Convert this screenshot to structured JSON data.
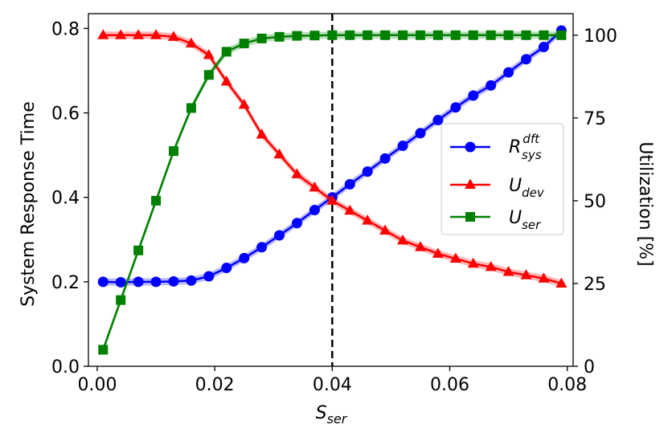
{
  "chart_data": {
    "type": "line",
    "title": "",
    "xlabel": {
      "base": "S",
      "sub": "ser"
    },
    "ylabel_left": "System Response Time",
    "ylabel_right": "Utilization [%]",
    "xlim": [
      -0.0015,
      0.081
    ],
    "ylim_left": [
      0.0,
      0.835
    ],
    "ylim_right": [
      0,
      106.5
    ],
    "xticks": [
      0.0,
      0.02,
      0.04,
      0.06,
      0.08
    ],
    "xtick_labels": [
      "0.00",
      "0.02",
      "0.04",
      "0.06",
      "0.08"
    ],
    "yticks_left": [
      0.0,
      0.2,
      0.4,
      0.6,
      0.8
    ],
    "ytick_labels_left": [
      "0.0",
      "0.2",
      "0.4",
      "0.6",
      "0.8"
    ],
    "yticks_right": [
      0,
      25,
      50,
      75,
      100
    ],
    "ytick_labels_right": [
      "0",
      "25",
      "50",
      "75",
      "100"
    ],
    "vline": {
      "x": 0.04,
      "style": "dashed",
      "color": "#000000"
    },
    "legend": {
      "placement": "center-right"
    },
    "x": [
      0.001,
      0.004,
      0.007,
      0.01,
      0.013,
      0.016,
      0.019,
      0.022,
      0.025,
      0.028,
      0.031,
      0.034,
      0.037,
      0.04,
      0.043,
      0.046,
      0.049,
      0.052,
      0.055,
      0.058,
      0.061,
      0.064,
      0.067,
      0.07,
      0.073,
      0.076,
      0.079
    ],
    "series": [
      {
        "name": "R_sys^dft",
        "label_base": "R",
        "label_sub": "sys",
        "label_sup": "dft",
        "axis": "left",
        "color": "#0000ff",
        "marker": "circle",
        "values": [
          0.2,
          0.199,
          0.2,
          0.2,
          0.201,
          0.203,
          0.213,
          0.233,
          0.256,
          0.282,
          0.31,
          0.339,
          0.37,
          0.4,
          0.431,
          0.461,
          0.492,
          0.522,
          0.552,
          0.583,
          0.613,
          0.641,
          0.665,
          0.696,
          0.727,
          0.756,
          0.795
        ]
      },
      {
        "name": "U_dev",
        "label_base": "U",
        "label_sub": "dev",
        "axis": "right",
        "color": "#ff0000",
        "marker": "triangle",
        "values": [
          100,
          100,
          100,
          100,
          99.5,
          97.5,
          94,
          86,
          79,
          70,
          64,
          58,
          54,
          50,
          47,
          44,
          41,
          38,
          36,
          34,
          32.5,
          31,
          30,
          28.5,
          27.5,
          26.5,
          25
        ]
      },
      {
        "name": "U_ser",
        "label_base": "U",
        "label_sub": "ser",
        "axis": "right",
        "color": "#008000",
        "marker": "square",
        "values": [
          5,
          20,
          35,
          50,
          65,
          78,
          88,
          95,
          97.5,
          99,
          99.5,
          99.8,
          99.9,
          100,
          100,
          100,
          100,
          100,
          100,
          100,
          100,
          100,
          100,
          100,
          100,
          100,
          100
        ]
      }
    ]
  }
}
